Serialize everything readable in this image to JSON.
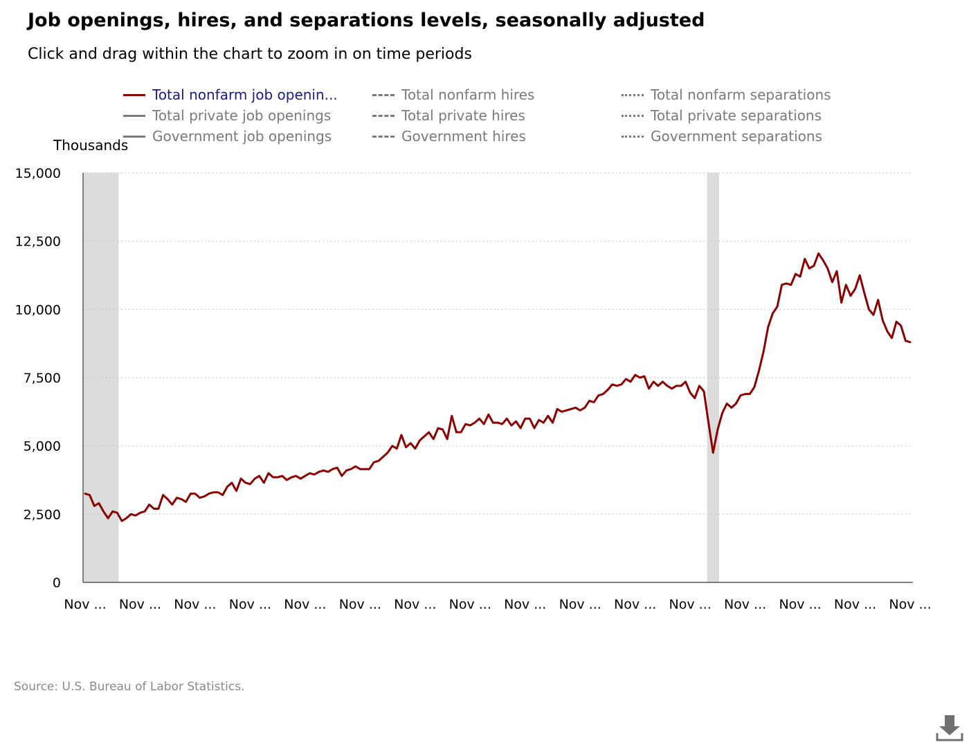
{
  "title": "Job openings, hires, and separations levels, seasonally adjusted",
  "subtitle": "Click and drag within the chart to zoom in on time periods",
  "legend": [
    {
      "label": "Total nonfarm job openin...",
      "style": "solid",
      "active": true
    },
    {
      "label": "Total nonfarm hires",
      "style": "dash",
      "active": false
    },
    {
      "label": "Total nonfarm separations",
      "style": "dot",
      "active": false
    },
    {
      "label": "Total private job openings",
      "style": "solid",
      "active": false
    },
    {
      "label": "Total private hires",
      "style": "dash",
      "active": false
    },
    {
      "label": "Total private separations",
      "style": "dot",
      "active": false
    },
    {
      "label": "Government job openings",
      "style": "solid",
      "active": false
    },
    {
      "label": "Government hires",
      "style": "dash",
      "active": false
    },
    {
      "label": "Government separations",
      "style": "dot",
      "active": false
    }
  ],
  "source": "Source: U.S. Bureau of Labor Statistics.",
  "download_icon": "download-icon",
  "colors": {
    "series": "#8b0000",
    "recession": "#dcdcdc",
    "grid": "#bbbbbb",
    "legend_inactive": "#7a7a7a",
    "legend_active": "#1a1a8a"
  },
  "chart_data": {
    "type": "line",
    "ylabel": "Thousands",
    "ylim": [
      0,
      15000
    ],
    "yticks": [
      0,
      2500,
      5000,
      7500,
      10000,
      12500,
      15000
    ],
    "ytick_labels": [
      "0",
      "2,500",
      "5,000",
      "7,500",
      "10,000",
      "12,500",
      "15,000"
    ],
    "xtick_labels": [
      "Nov ...",
      "Nov ...",
      "Nov ...",
      "Nov ...",
      "Nov ...",
      "Nov ...",
      "Nov ...",
      "Nov ...",
      "Nov ...",
      "Nov ...",
      "Nov ...",
      "Nov ...",
      "Nov ...",
      "Nov ...",
      "Nov ...",
      "Nov ..."
    ],
    "x_points_per_label": 12,
    "grid": "horizontal dotted",
    "recession_bands": [
      {
        "start_index": 0,
        "end_index": 7
      },
      {
        "start_index": 136,
        "end_index": 138
      }
    ],
    "series": [
      {
        "values": [
          3250,
          3200,
          2800,
          2900,
          2600,
          2350,
          2600,
          2550,
          2250,
          2350,
          2500,
          2450,
          2550,
          2600,
          2850,
          2700,
          2700,
          3200,
          3050,
          2850,
          3100,
          3050,
          2950,
          3250,
          3250,
          3100,
          3150,
          3250,
          3300,
          3300,
          3200,
          3500,
          3650,
          3350,
          3800,
          3650,
          3600,
          3800,
          3900,
          3650,
          4000,
          3850,
          3850,
          3900,
          3750,
          3850,
          3900,
          3800,
          3900,
          4000,
          3950,
          4050,
          4100,
          4050,
          4150,
          4200,
          3900,
          4100,
          4150,
          4250,
          4150,
          4150,
          4150,
          4400,
          4450,
          4600,
          4750,
          5000,
          4900,
          5400,
          4950,
          5100,
          4900,
          5200,
          5350,
          5500,
          5250,
          5650,
          5600,
          5250,
          6100,
          5500,
          5500,
          5800,
          5750,
          5850,
          6000,
          5800,
          6150,
          5850,
          5850,
          5800,
          6000,
          5750,
          5900,
          5650,
          6000,
          6000,
          5650,
          5950,
          5850,
          6100,
          5850,
          6350,
          6250,
          6300,
          6350,
          6400,
          6300,
          6400,
          6650,
          6600,
          6850,
          6900,
          7050,
          7250,
          7200,
          7250,
          7450,
          7350,
          7600,
          7500,
          7550,
          7100,
          7350,
          7200,
          7350,
          7200,
          7100,
          7200,
          7200,
          7350,
          6950,
          6750,
          7200,
          7000,
          5850,
          4750,
          5600,
          6200,
          6550,
          6400,
          6550,
          6850,
          6900,
          6900,
          7150,
          7750,
          8450,
          9350,
          9850,
          10100,
          10900,
          10950,
          10900,
          11300,
          11200,
          11850,
          11500,
          11600,
          12050,
          11800,
          11500,
          11000,
          11400,
          10250,
          10900,
          10500,
          10750,
          11250,
          10600,
          10000,
          9800,
          10350,
          9600,
          9200,
          8950,
          9550,
          9400,
          8850,
          8800
        ]
      }
    ]
  }
}
